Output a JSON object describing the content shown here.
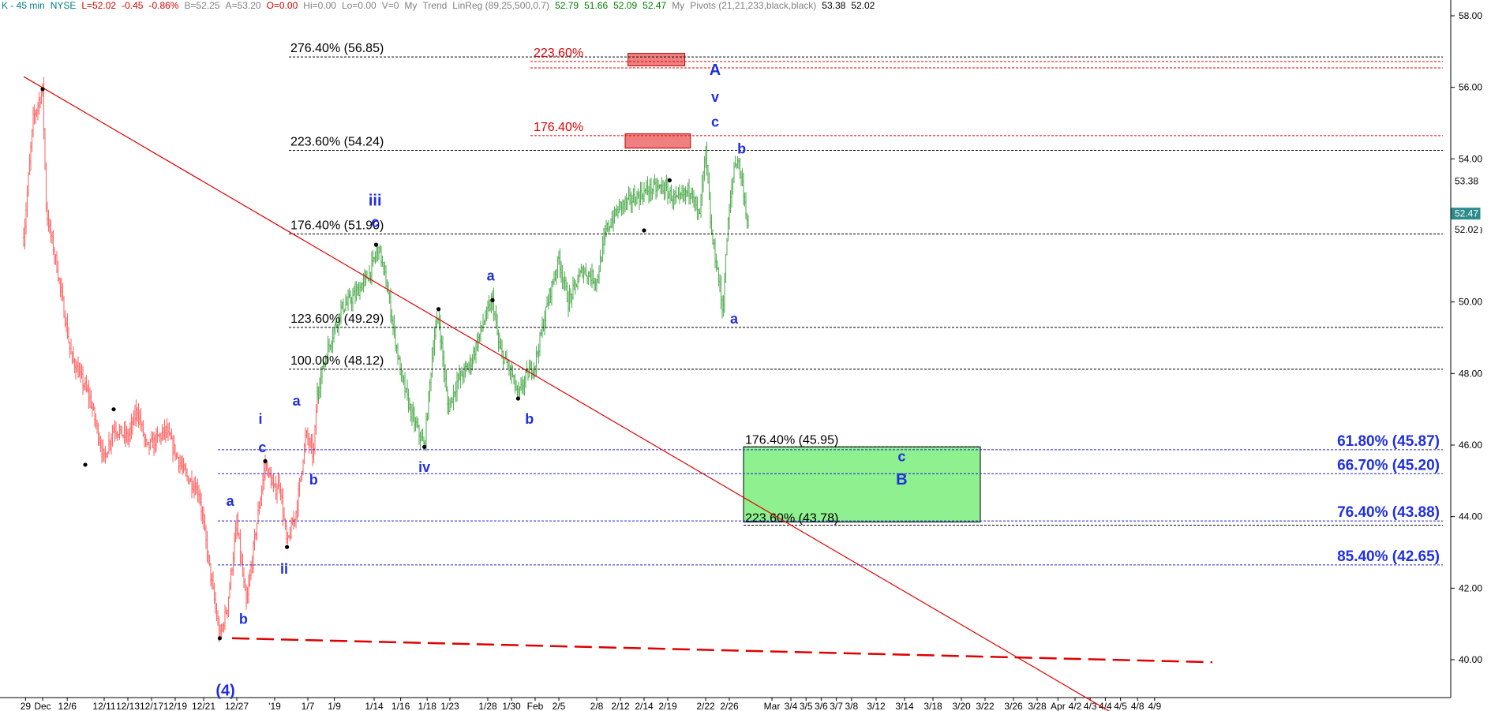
{
  "header": {
    "items": [
      {
        "text": "K - 45 min",
        "color": "#008080"
      },
      {
        "text": "NYSE",
        "color": "#008080"
      },
      {
        "text": "L=52.02",
        "color": "#e00000"
      },
      {
        "text": "-0.45",
        "color": "#e00000"
      },
      {
        "text": "-0.86%",
        "color": "#e00000"
      },
      {
        "text": "B=52.25",
        "color": "#808080"
      },
      {
        "text": "A=53.20",
        "color": "#808080"
      },
      {
        "text": "O=0.00",
        "color": "#e00000"
      },
      {
        "text": "Hi=0.00",
        "color": "#808080"
      },
      {
        "text": "Lo=0.00",
        "color": "#808080"
      },
      {
        "text": "V=0",
        "color": "#808080"
      },
      {
        "text": "My",
        "color": "#808080"
      },
      {
        "text": "Trend",
        "color": "#808080"
      },
      {
        "text": "LinReg (89,25,500,0.7)",
        "color": "#808080"
      },
      {
        "text": "52.79",
        "color": "#008000"
      },
      {
        "text": "51.66",
        "color": "#008000"
      },
      {
        "text": "52.09",
        "color": "#008000"
      },
      {
        "text": "52.47",
        "color": "#008000"
      },
      {
        "text": "My",
        "color": "#808080"
      },
      {
        "text": "Pivots (21,21,233,black,black)",
        "color": "#808080"
      },
      {
        "text": "53.38",
        "color": "#000000"
      },
      {
        "text": "52.02",
        "color": "#000000"
      }
    ]
  },
  "chart_data": {
    "type": "bar",
    "style": "ohlc",
    "ylim": [
      38.5,
      58.5
    ],
    "yticks": [
      "58.00",
      "56.00",
      "54.00",
      "52.00",
      "50.00",
      "48.00",
      "46.00",
      "44.00",
      "42.00",
      "40.00"
    ],
    "ytick_values": [
      58,
      56,
      54,
      52,
      50,
      48,
      46,
      44,
      42,
      40
    ],
    "price_tags": [
      {
        "label": "53.38",
        "value": 53.38,
        "bg": "#ffffff",
        "fg": "#000000"
      },
      {
        "label": "52.47",
        "value": 52.47,
        "bg": "#2e8b8b",
        "fg": "#ffffff"
      },
      {
        "label": "52.02",
        "value": 52.02,
        "bg": "#ffffff",
        "fg": "#000000"
      }
    ],
    "xticks": [
      "29",
      "Dec",
      "12/6",
      "12/11",
      "12/13",
      "12/17",
      "12/19",
      "12/21",
      "12/27",
      "'19",
      "1/7",
      "1/9",
      "1/14",
      "1/16",
      "1/18",
      "1/23",
      "1/28",
      "1/30",
      "Feb",
      "2/5",
      "2/8",
      "2/12",
      "2/14",
      "2/19",
      "2/22",
      "2/26",
      "Mar",
      "3/4",
      "3/5",
      "3/6",
      "3/7",
      "3/8",
      "3/12",
      "3/14",
      "3/18",
      "3/20",
      "3/22",
      "3/26",
      "3/28",
      "Apr",
      "4/2",
      "4/3",
      "4/4",
      "4/5",
      "4/8",
      "4/9"
    ],
    "xtick_index": [
      0.2,
      2.0,
      4.6,
      8.5,
      11.0,
      13.5,
      16.0,
      19.0,
      22.5,
      26.5,
      30.0,
      32.8,
      37.0,
      39.8,
      42.6,
      45.0,
      49.0,
      51.5,
      54.0,
      56.5,
      60.5,
      63.0,
      65.5,
      68.0,
      72.0,
      74.5,
      79.0,
      81.0,
      82.6,
      84.2,
      85.8,
      87.4,
      90.0,
      93.0,
      96.0,
      99.0,
      101.5,
      104.5,
      107.0,
      109.2,
      111.0,
      112.6,
      114.2,
      115.8,
      117.6,
      119.4
    ],
    "down_swing": {
      "color": "#ff6b6b",
      "path": [
        [
          0,
          51.8
        ],
        [
          1,
          55.1
        ],
        [
          2,
          55.95
        ],
        [
          2.4,
          52.5
        ],
        [
          3.5,
          51.0
        ],
        [
          5,
          48.5
        ],
        [
          7,
          47.3
        ],
        [
          8.5,
          45.6
        ],
        [
          9.5,
          46.5
        ],
        [
          11,
          46.2
        ],
        [
          12,
          47.0
        ],
        [
          13,
          45.9
        ],
        [
          15,
          46.4
        ],
        [
          17,
          45.2
        ],
        [
          18.5,
          44.7
        ],
        [
          19.5,
          42.8
        ],
        [
          20.7,
          40.6
        ],
        [
          21.5,
          41.5
        ],
        [
          22.5,
          43.8
        ],
        [
          23.5,
          41.5
        ],
        [
          24.5,
          43.6
        ],
        [
          25.5,
          45.5
        ],
        [
          26.5,
          44.7
        ],
        [
          27,
          45.0
        ],
        [
          27.8,
          43.2
        ],
        [
          28.8,
          44.2
        ],
        [
          29.8,
          46.3
        ],
        [
          30.6,
          45.7
        ],
        [
          31,
          47.5
        ]
      ]
    },
    "up_swing": {
      "color": "#5ab15a",
      "path": [
        [
          31,
          47.5
        ],
        [
          32,
          48.6
        ],
        [
          33.5,
          49.8
        ],
        [
          35,
          50.2
        ],
        [
          36.5,
          50.8
        ],
        [
          37.5,
          51.55
        ],
        [
          38.5,
          50.2
        ],
        [
          39.8,
          48.0
        ],
        [
          41,
          46.8
        ],
        [
          42.3,
          45.95
        ],
        [
          43.3,
          49.0
        ],
        [
          43.8,
          49.6
        ],
        [
          44.8,
          47.0
        ],
        [
          45.8,
          47.8
        ],
        [
          47.2,
          48.3
        ],
        [
          48.5,
          49.4
        ],
        [
          49.5,
          50.05
        ],
        [
          50.2,
          48.7
        ],
        [
          51.5,
          48.0
        ],
        [
          52.2,
          47.35
        ],
        [
          53,
          47.9
        ],
        [
          54,
          48.3
        ],
        [
          55.5,
          50.2
        ],
        [
          56.5,
          51.2
        ],
        [
          57.5,
          50.0
        ],
        [
          59,
          50.9
        ],
        [
          60.5,
          50.6
        ],
        [
          61.5,
          52.0
        ],
        [
          63,
          52.7
        ],
        [
          64.5,
          52.9
        ],
        [
          66,
          53.15
        ],
        [
          67.5,
          53.2
        ],
        [
          69,
          52.8
        ],
        [
          70.5,
          53.2
        ],
        [
          71.3,
          52.3
        ],
        [
          72,
          54.2
        ],
        [
          72.6,
          51.9
        ],
        [
          73.3,
          50.8
        ],
        [
          73.8,
          49.7
        ],
        [
          74.3,
          52.0
        ],
        [
          75,
          53.8
        ],
        [
          75.4,
          54.0
        ],
        [
          76,
          53.1
        ],
        [
          76.5,
          52.0
        ]
      ]
    },
    "pivot_points": [
      [
        2.0,
        55.95
      ],
      [
        9.5,
        47.0
      ],
      [
        6.5,
        45.45
      ],
      [
        20.7,
        40.6
      ],
      [
        25.5,
        45.55
      ],
      [
        27.8,
        43.15
      ],
      [
        37.2,
        51.6
      ],
      [
        42.3,
        45.95
      ],
      [
        43.8,
        49.8
      ],
      [
        49.5,
        50.05
      ],
      [
        52.2,
        47.3
      ],
      [
        65.5,
        52.0
      ],
      [
        68.2,
        53.4
      ]
    ],
    "fib_lines_black": [
      {
        "label": "276.40% (56.85)",
        "value": 56.85,
        "x0": 28.0,
        "x1": 125.5
      },
      {
        "label": "223.60% (54.24)",
        "value": 54.24,
        "x0": 28.0,
        "x1": 125.5
      },
      {
        "label": "176.40% (51.90)",
        "value": 51.9,
        "x0": 28.0,
        "x1": 125.5
      },
      {
        "label": "123.60% (49.29)",
        "value": 49.29,
        "x0": 28.0,
        "x1": 125.5
      },
      {
        "label": "100.00% (48.12)",
        "value": 48.12,
        "x0": 28.0,
        "x1": 125.5
      }
    ],
    "fib_lines_red": [
      {
        "label": "223.60%",
        "value": 56.72,
        "x0": 53.5,
        "x1": 125.5
      },
      {
        "label": "176.40%",
        "value": 54.65,
        "x0": 53.5,
        "x1": 125.5
      }
    ],
    "red_boxes": [
      {
        "x0": 63.8,
        "x1": 69.8,
        "y0": 56.6,
        "y1": 56.95
      },
      {
        "x0": 63.5,
        "x1": 70.4,
        "y0": 54.3,
        "y1": 54.7
      }
    ],
    "target_box": {
      "x0": 76.0,
      "x1": 101.0,
      "y0": 43.85,
      "y1": 45.95,
      "color": "#8ef08e",
      "top_label": "176.40% (45.95)",
      "bottom_label": "223.60% (43.78)",
      "line_top": 45.95,
      "line_bottom": 43.78
    },
    "retracements": [
      {
        "label": "61.80% (45.87)",
        "value": 45.87
      },
      {
        "label": "66.70% (45.20)",
        "value": 45.2
      },
      {
        "label": "76.40% (43.88)",
        "value": 43.88
      },
      {
        "label": "85.40% (42.65)",
        "value": 42.65
      }
    ],
    "trendline": {
      "color": "#e00000",
      "p0": [
        0,
        56.3
      ],
      "p1": [
        120.5,
        37.65
      ]
    },
    "support_line": {
      "color": "#e00000",
      "p0": [
        22.0,
        40.6
      ],
      "p1": [
        125.5,
        39.93
      ]
    },
    "wave_labels": [
      {
        "text": "(4)",
        "x": 21.3,
        "y": 39.0,
        "size": 20
      },
      {
        "text": "a",
        "x": 21.8,
        "y": 44.3,
        "size": 18
      },
      {
        "text": "b",
        "x": 23.2,
        "y": 41.0,
        "size": 18
      },
      {
        "text": "i",
        "x": 25.0,
        "y": 46.6,
        "size": 18
      },
      {
        "text": "c",
        "x": 25.2,
        "y": 45.8,
        "size": 18
      },
      {
        "text": "ii",
        "x": 27.5,
        "y": 42.4,
        "size": 18
      },
      {
        "text": "a",
        "x": 28.8,
        "y": 47.1,
        "size": 18
      },
      {
        "text": "b",
        "x": 30.6,
        "y": 44.9,
        "size": 18
      },
      {
        "text": "iii",
        "x": 37.1,
        "y": 52.7,
        "size": 20
      },
      {
        "text": "c",
        "x": 37.1,
        "y": 52.1,
        "size": 18
      },
      {
        "text": "iv",
        "x": 42.3,
        "y": 45.25,
        "size": 18
      },
      {
        "text": "a",
        "x": 49.3,
        "y": 50.6,
        "size": 18
      },
      {
        "text": "b",
        "x": 53.4,
        "y": 46.6,
        "size": 18
      },
      {
        "text": "A",
        "x": 73.0,
        "y": 56.35,
        "size": 20
      },
      {
        "text": "v",
        "x": 73.0,
        "y": 55.6,
        "size": 18
      },
      {
        "text": "c",
        "x": 73.0,
        "y": 54.9,
        "size": 18
      },
      {
        "text": "b",
        "x": 75.8,
        "y": 54.15,
        "size": 18
      },
      {
        "text": "a",
        "x": 75.0,
        "y": 49.4,
        "size": 18
      },
      {
        "text": "c",
        "x": 92.7,
        "y": 45.55,
        "size": 18
      },
      {
        "text": "B",
        "x": 92.7,
        "y": 44.9,
        "size": 20
      }
    ]
  }
}
